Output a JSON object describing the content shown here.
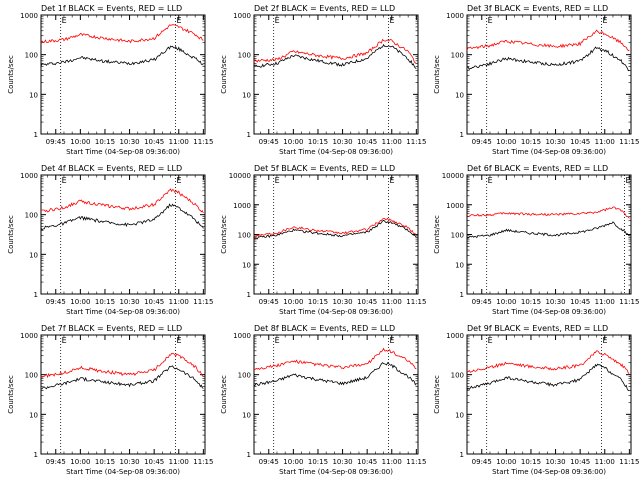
{
  "page": {
    "background": "#ffffff",
    "events_color": "#000000",
    "lld_color": "#ff0000"
  },
  "chart_data": [
    {
      "type": "line",
      "title": "Det 1f BLACK = Events, RED = LLD",
      "xlabel": "Start Time (04-Sep-08 09:36:00)",
      "ylabel": "Counts/sec",
      "x_ticks": [
        "09:45",
        "10:00",
        "10:15",
        "10:30",
        "10:45",
        "11:00",
        "11:15"
      ],
      "y_ticks": [
        "1",
        "10",
        "100",
        "1000"
      ],
      "y_scale": "log",
      "ylim": [
        1,
        1000
      ],
      "xlim": [
        "09:36",
        "11:16"
      ],
      "markers": [
        "09:48",
        "10:58"
      ],
      "marker_label": "E",
      "series": [
        {
          "name": "Events",
          "color": "#000000",
          "x": [
            "09:36",
            "09:50",
            "10:00",
            "10:15",
            "10:30",
            "10:45",
            "10:55",
            "11:00",
            "11:10",
            "11:15"
          ],
          "values": [
            55,
            65,
            85,
            68,
            60,
            75,
            160,
            140,
            80,
            55
          ]
        },
        {
          "name": "LLD",
          "color": "#ff0000",
          "x": [
            "09:36",
            "09:50",
            "10:00",
            "10:15",
            "10:30",
            "10:45",
            "10:55",
            "11:00",
            "11:10",
            "11:15"
          ],
          "values": [
            210,
            240,
            320,
            260,
            215,
            260,
            560,
            500,
            330,
            230
          ]
        }
      ]
    },
    {
      "type": "line",
      "title": "Det 2f BLACK = Events, RED = LLD",
      "xlabel": "Start Time (04-Sep-08 09:36:00)",
      "ylabel": "Counts/sec",
      "x_ticks": [
        "09:45",
        "10:00",
        "10:15",
        "10:30",
        "10:45",
        "11:00",
        "11:15"
      ],
      "y_ticks": [
        "1",
        "10",
        "100",
        "1000"
      ],
      "y_scale": "log",
      "ylim": [
        1,
        1000
      ],
      "xlim": [
        "09:36",
        "11:16"
      ],
      "markers": [
        "09:48",
        "10:58"
      ],
      "marker_label": "E",
      "series": [
        {
          "name": "Events",
          "color": "#000000",
          "x": [
            "09:36",
            "09:50",
            "10:00",
            "10:15",
            "10:30",
            "10:45",
            "10:55",
            "11:00",
            "11:10",
            "11:15"
          ],
          "values": [
            50,
            60,
            95,
            70,
            55,
            80,
            180,
            160,
            80,
            45
          ]
        },
        {
          "name": "LLD",
          "color": "#ff0000",
          "x": [
            "09:36",
            "09:50",
            "10:00",
            "10:15",
            "10:30",
            "10:45",
            "10:55",
            "11:00",
            "11:10",
            "11:15"
          ],
          "values": [
            70,
            75,
            120,
            95,
            80,
            110,
            240,
            220,
            120,
            60
          ]
        }
      ]
    },
    {
      "type": "line",
      "title": "Det 3f BLACK = Events, RED = LLD",
      "xlabel": "Start Time (04-Sep-08 09:36:00)",
      "ylabel": "Counts/sec",
      "x_ticks": [
        "09:45",
        "10:00",
        "10:15",
        "10:30",
        "10:45",
        "11:00",
        "11:15"
      ],
      "y_ticks": [
        "1",
        "10",
        "100",
        "1000"
      ],
      "y_scale": "log",
      "ylim": [
        1,
        1000
      ],
      "xlim": [
        "09:36",
        "11:16"
      ],
      "markers": [
        "09:48",
        "10:58"
      ],
      "marker_label": "E",
      "series": [
        {
          "name": "Events",
          "color": "#000000",
          "x": [
            "09:36",
            "09:50",
            "10:00",
            "10:15",
            "10:30",
            "10:45",
            "10:55",
            "11:00",
            "11:10",
            "11:15"
          ],
          "values": [
            45,
            60,
            80,
            65,
            55,
            70,
            150,
            130,
            70,
            40
          ]
        },
        {
          "name": "LLD",
          "color": "#ff0000",
          "x": [
            "09:36",
            "09:50",
            "10:00",
            "10:15",
            "10:30",
            "10:45",
            "10:55",
            "11:00",
            "11:10",
            "11:15"
          ],
          "values": [
            140,
            170,
            220,
            185,
            160,
            190,
            380,
            340,
            200,
            130
          ]
        }
      ]
    },
    {
      "type": "line",
      "title": "Det 4f BLACK = Events, RED = LLD",
      "xlabel": "Start Time (04-Sep-08 09:36:00)",
      "ylabel": "Counts/sec",
      "x_ticks": [
        "09:45",
        "10:00",
        "10:15",
        "10:30",
        "10:45",
        "11:00",
        "11:15"
      ],
      "y_ticks": [
        "1",
        "10",
        "100",
        "1000"
      ],
      "y_scale": "log",
      "ylim": [
        1,
        1000
      ],
      "xlim": [
        "09:36",
        "11:16"
      ],
      "markers": [
        "09:48",
        "10:58"
      ],
      "marker_label": "E",
      "series": [
        {
          "name": "Events",
          "color": "#000000",
          "x": [
            "09:36",
            "09:50",
            "10:00",
            "10:15",
            "10:30",
            "10:45",
            "10:55",
            "11:00",
            "11:10",
            "11:15"
          ],
          "values": [
            45,
            60,
            85,
            65,
            55,
            75,
            180,
            150,
            75,
            45
          ]
        },
        {
          "name": "LLD",
          "color": "#ff0000",
          "x": [
            "09:36",
            "09:50",
            "10:00",
            "10:15",
            "10:30",
            "10:45",
            "10:55",
            "11:00",
            "11:10",
            "11:15"
          ],
          "values": [
            120,
            150,
            220,
            170,
            140,
            180,
            420,
            360,
            180,
            110
          ]
        }
      ]
    },
    {
      "type": "line",
      "title": "Det 5f BLACK = Events, RED = LLD",
      "xlabel": "Start Time (04-Sep-08 09:36:00)",
      "ylabel": "Counts/sec",
      "x_ticks": [
        "09:45",
        "10:00",
        "10:15",
        "10:30",
        "10:45",
        "11:00",
        "11:15"
      ],
      "y_ticks": [
        "1",
        "10",
        "100",
        "1000",
        "10000"
      ],
      "y_scale": "log",
      "ylim": [
        1,
        10000
      ],
      "xlim": [
        "09:36",
        "11:16"
      ],
      "markers": [
        "09:48",
        "10:58"
      ],
      "marker_label": "E",
      "series": [
        {
          "name": "Events",
          "color": "#000000",
          "x": [
            "09:36",
            "09:50",
            "10:00",
            "10:15",
            "10:30",
            "10:45",
            "10:55",
            "11:00",
            "11:10",
            "11:15"
          ],
          "values": [
            75,
            95,
            140,
            110,
            90,
            120,
            280,
            250,
            140,
            80
          ]
        },
        {
          "name": "LLD",
          "color": "#ff0000",
          "x": [
            "09:36",
            "09:50",
            "10:00",
            "10:15",
            "10:30",
            "10:45",
            "10:55",
            "11:00",
            "11:10",
            "11:15"
          ],
          "values": [
            90,
            115,
            180,
            135,
            110,
            150,
            340,
            300,
            170,
            95
          ]
        }
      ]
    },
    {
      "type": "line",
      "title": "Det 6f BLACK = Events, RED = LLD",
      "xlabel": "Start Time (04-Sep-08 09:36:00)",
      "ylabel": "Counts/sec",
      "x_ticks": [
        "09:45",
        "10:00",
        "10:15",
        "10:30",
        "10:45",
        "11:00",
        "11:15"
      ],
      "y_ticks": [
        "1",
        "10",
        "100",
        "1000",
        "10000"
      ],
      "y_scale": "log",
      "ylim": [
        1,
        10000
      ],
      "xlim": [
        "09:36",
        "11:16"
      ],
      "markers": [
        "09:48",
        "11:12"
      ],
      "marker_label": "E",
      "series": [
        {
          "name": "Events",
          "color": "#000000",
          "x": [
            "09:36",
            "09:50",
            "10:00",
            "10:15",
            "10:30",
            "10:45",
            "10:55",
            "11:05",
            "11:10",
            "11:15"
          ],
          "values": [
            80,
            95,
            140,
            110,
            95,
            120,
            160,
            260,
            150,
            90
          ]
        },
        {
          "name": "LLD",
          "color": "#ff0000",
          "x": [
            "09:36",
            "09:50",
            "10:00",
            "10:15",
            "10:30",
            "10:45",
            "10:55",
            "11:05",
            "11:10",
            "11:15"
          ],
          "values": [
            430,
            460,
            520,
            480,
            470,
            500,
            560,
            800,
            650,
            350
          ]
        }
      ]
    },
    {
      "type": "line",
      "title": "Det 7f BLACK = Events, RED = LLD",
      "xlabel": "Start Time (04-Sep-08 09:36:00)",
      "ylabel": "Counts/sec",
      "x_ticks": [
        "09:45",
        "10:00",
        "10:15",
        "10:30",
        "10:45",
        "11:00",
        "11:15"
      ],
      "y_ticks": [
        "1",
        "10",
        "100",
        "1000"
      ],
      "y_scale": "log",
      "ylim": [
        1,
        1000
      ],
      "xlim": [
        "09:36",
        "11:16"
      ],
      "markers": [
        "09:48",
        "10:58"
      ],
      "marker_label": "E",
      "series": [
        {
          "name": "Events",
          "color": "#000000",
          "x": [
            "09:36",
            "09:50",
            "10:00",
            "10:15",
            "10:30",
            "10:45",
            "10:55",
            "11:00",
            "11:10",
            "11:15"
          ],
          "values": [
            45,
            60,
            80,
            65,
            55,
            70,
            160,
            140,
            75,
            45
          ]
        },
        {
          "name": "LLD",
          "color": "#ff0000",
          "x": [
            "09:36",
            "09:50",
            "10:00",
            "10:15",
            "10:30",
            "10:45",
            "10:55",
            "11:00",
            "11:10",
            "11:15"
          ],
          "values": [
            90,
            110,
            150,
            120,
            100,
            130,
            330,
            300,
            160,
            90
          ]
        }
      ]
    },
    {
      "type": "line",
      "title": "Det 8f BLACK = Events, RED = LLD",
      "xlabel": "Start Time (04-Sep-08 09:36:00)",
      "ylabel": "Counts/sec",
      "x_ticks": [
        "09:45",
        "10:00",
        "10:15",
        "10:30",
        "10:45",
        "11:00",
        "11:15"
      ],
      "y_ticks": [
        "1",
        "10",
        "100",
        "1000"
      ],
      "y_scale": "log",
      "ylim": [
        1,
        1000
      ],
      "xlim": [
        "09:36",
        "11:16"
      ],
      "markers": [
        "09:48",
        "10:58"
      ],
      "marker_label": "E",
      "series": [
        {
          "name": "Events",
          "color": "#000000",
          "x": [
            "09:36",
            "09:50",
            "10:00",
            "10:15",
            "10:30",
            "10:45",
            "10:55",
            "11:00",
            "11:10",
            "11:15"
          ],
          "values": [
            55,
            70,
            100,
            75,
            60,
            85,
            200,
            170,
            90,
            55
          ]
        },
        {
          "name": "LLD",
          "color": "#ff0000",
          "x": [
            "09:36",
            "09:50",
            "10:00",
            "10:15",
            "10:30",
            "10:45",
            "10:55",
            "11:00",
            "11:10",
            "11:15"
          ],
          "values": [
            140,
            170,
            220,
            180,
            150,
            190,
            420,
            380,
            220,
            140
          ]
        }
      ]
    },
    {
      "type": "line",
      "title": "Det 9f BLACK = Events, RED = LLD",
      "xlabel": "Start Time (04-Sep-08 09:36:00)",
      "ylabel": "Counts/sec",
      "x_ticks": [
        "09:45",
        "10:00",
        "10:15",
        "10:30",
        "10:45",
        "11:00",
        "11:15"
      ],
      "y_ticks": [
        "1",
        "10",
        "100",
        "1000"
      ],
      "y_scale": "log",
      "ylim": [
        1,
        1000
      ],
      "xlim": [
        "09:36",
        "11:16"
      ],
      "markers": [
        "09:48",
        "10:58"
      ],
      "marker_label": "E",
      "series": [
        {
          "name": "Events",
          "color": "#000000",
          "x": [
            "09:36",
            "09:50",
            "10:00",
            "10:15",
            "10:30",
            "10:45",
            "10:55",
            "11:00",
            "11:10",
            "11:15"
          ],
          "values": [
            45,
            60,
            85,
            65,
            55,
            75,
            180,
            150,
            75,
            40
          ]
        },
        {
          "name": "LLD",
          "color": "#ff0000",
          "x": [
            "09:36",
            "09:50",
            "10:00",
            "10:15",
            "10:30",
            "10:45",
            "10:55",
            "11:00",
            "11:10",
            "11:15"
          ],
          "values": [
            120,
            150,
            200,
            160,
            140,
            170,
            380,
            330,
            180,
            110
          ]
        }
      ]
    }
  ]
}
